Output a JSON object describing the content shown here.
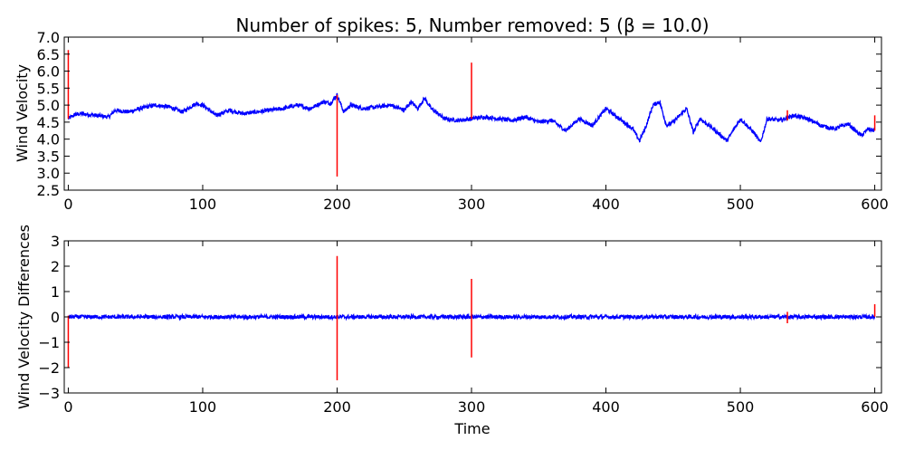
{
  "figure": {
    "title": "Number of spikes: 5, Number removed: 5 (β = 10.0)"
  },
  "chart_data": [
    {
      "type": "line",
      "title": "Number of spikes: 5, Number removed: 5 (β = 10.0)",
      "xlabel": "",
      "ylabel": "Wind Velocity",
      "xlim": [
        -3,
        605
      ],
      "ylim": [
        2.5,
        7.0
      ],
      "xticks": [
        0,
        100,
        200,
        300,
        400,
        500,
        600
      ],
      "yticks": [
        2.5,
        3.0,
        3.5,
        4.0,
        4.5,
        5.0,
        5.5,
        6.0,
        6.5,
        7.0
      ],
      "grid": false,
      "colors": {
        "cleaned": "#0000ff",
        "spike": "#ff0000"
      },
      "series": [
        {
          "name": "",
          "color": "#0000ff",
          "x": [
            0,
            5,
            10,
            20,
            30,
            35,
            45,
            55,
            65,
            75,
            85,
            95,
            100,
            110,
            120,
            130,
            140,
            150,
            160,
            170,
            180,
            190,
            195,
            200,
            205,
            210,
            220,
            230,
            240,
            250,
            255,
            260,
            265,
            270,
            280,
            290,
            300,
            310,
            320,
            330,
            340,
            350,
            360,
            370,
            380,
            390,
            400,
            410,
            420,
            425,
            430,
            435,
            440,
            445,
            450,
            460,
            465,
            470,
            480,
            490,
            500,
            510,
            515,
            520,
            530,
            540,
            550,
            560,
            570,
            580,
            590,
            595,
            600
          ],
          "y": [
            4.6,
            4.72,
            4.75,
            4.7,
            4.65,
            4.85,
            4.8,
            4.92,
            5.0,
            4.95,
            4.8,
            5.05,
            5.0,
            4.7,
            4.85,
            4.75,
            4.8,
            4.85,
            4.9,
            5.0,
            4.9,
            5.1,
            5.05,
            5.3,
            4.8,
            5.0,
            4.9,
            4.95,
            5.0,
            4.85,
            5.1,
            4.9,
            5.2,
            4.9,
            4.6,
            4.55,
            4.6,
            4.65,
            4.6,
            4.55,
            4.65,
            4.5,
            4.55,
            4.25,
            4.6,
            4.4,
            4.9,
            4.6,
            4.3,
            3.95,
            4.4,
            5.0,
            5.1,
            4.4,
            4.5,
            4.9,
            4.2,
            4.6,
            4.3,
            3.95,
            4.6,
            4.2,
            3.9,
            4.6,
            4.55,
            4.7,
            4.6,
            4.4,
            4.3,
            4.45,
            4.1,
            4.3,
            4.25
          ]
        },
        {
          "name": "",
          "color": "#ff0000",
          "type": "spikes",
          "x": [
            0,
            200,
            300,
            535,
            600
          ],
          "y_from": [
            4.6,
            5.3,
            4.6,
            4.55,
            4.25
          ],
          "y_to": [
            6.62,
            2.9,
            6.25,
            4.85,
            4.7
          ]
        }
      ]
    },
    {
      "type": "line",
      "title": "",
      "xlabel": "Time",
      "ylabel": "Wind Velocity Differences",
      "xlim": [
        -3,
        605
      ],
      "ylim": [
        -3,
        3
      ],
      "xticks": [
        0,
        100,
        200,
        300,
        400,
        500,
        600
      ],
      "yticks": [
        -3,
        -2,
        -1,
        0,
        1,
        2,
        3
      ],
      "grid": false,
      "series": [
        {
          "name": "",
          "color": "#0000ff",
          "x": [
            0,
            600
          ],
          "y": [
            0,
            0
          ],
          "noise_amplitude": 0.08
        },
        {
          "name": "",
          "color": "#ff0000",
          "type": "spikes",
          "x": [
            0,
            200,
            300,
            535,
            600
          ],
          "y_from": [
            -2.0,
            -2.5,
            -1.6,
            -0.25,
            0.0
          ],
          "y_to": [
            0.05,
            2.4,
            1.5,
            0.2,
            0.5
          ]
        }
      ]
    }
  ]
}
